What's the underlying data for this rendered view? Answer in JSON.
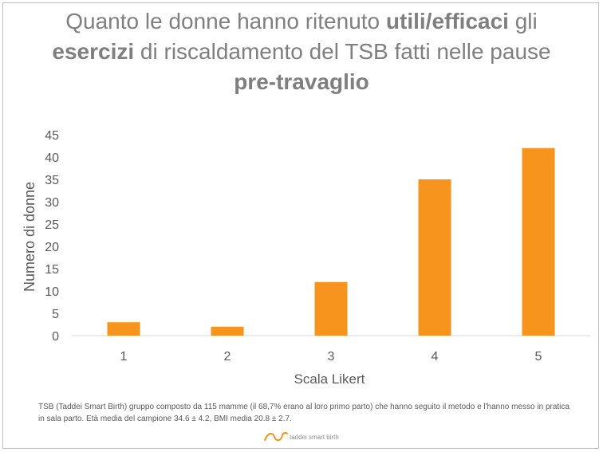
{
  "chart_data": {
    "type": "bar",
    "title": {
      "line1": [
        "Quanto le donne hanno ritenuto ",
        "utili/efficaci",
        " gli"
      ],
      "line2": [
        "esercizi",
        " di riscaldamento del TSB fatti nelle pause"
      ],
      "line3": [
        "pre-travaglio"
      ]
    },
    "categories": [
      "1",
      "2",
      "3",
      "4",
      "5"
    ],
    "values": [
      3,
      2,
      12,
      35,
      42
    ],
    "xlabel": "Scala Likert",
    "ylabel": "Numero di donne",
    "ylim": [
      0,
      45
    ],
    "yticks": [
      "0",
      "5",
      "10",
      "15",
      "20",
      "25",
      "30",
      "35",
      "40",
      "45"
    ],
    "bar_color": "#f7941d",
    "grid": false,
    "legend": "none"
  },
  "footnote": "TSB (Taddei Smart Birth) gruppo composto da 115 mamme (il 68,7% erano al loro primo parto) che hanno seguito il metodo e l'hanno messo in pratica in sala parto. Età media del campione 34.6 ± 4.2, BMI media 20.8 ± 2.7.",
  "logo_text": "taddei smart birth"
}
